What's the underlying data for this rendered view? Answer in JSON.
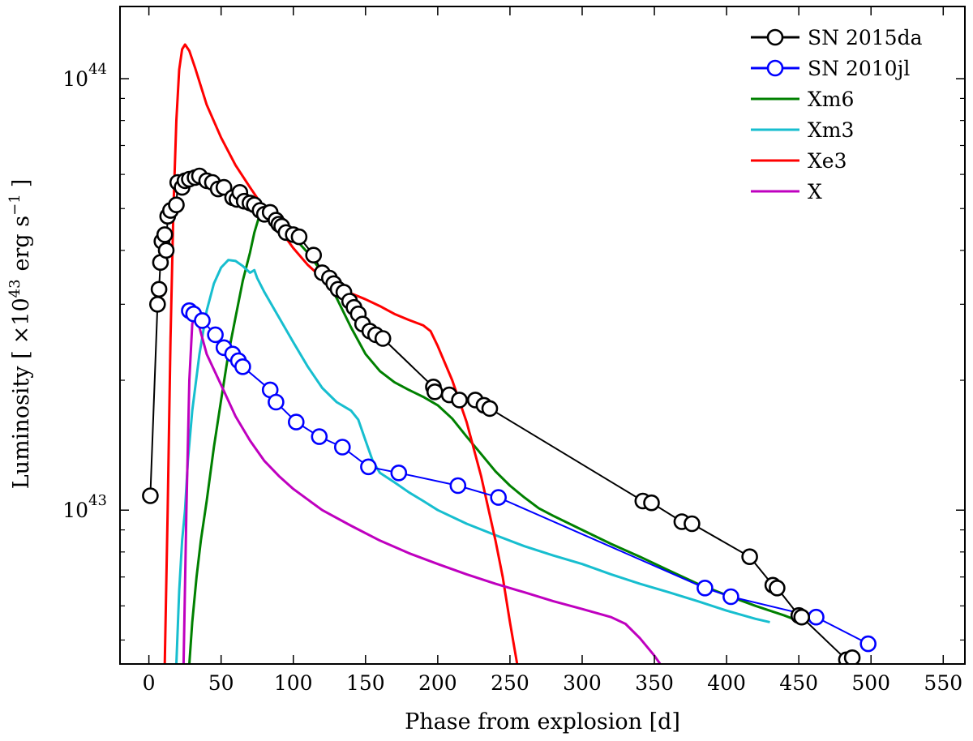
{
  "chart_data": {
    "type": "line",
    "title": "",
    "xlabel": "Phase from explosion [d]",
    "ylabel_prefix": "Luminosity [",
    "ylabel_unit": "×10",
    "ylabel_exp": "43",
    "ylabel_mid": "erg s",
    "ylabel_sexp": "−1",
    "ylabel_suffix": "]",
    "xlim": [
      -20,
      565
    ],
    "ylim": [
      4.4e+42,
      1.47e+44
    ],
    "yscale": "log",
    "x_ticks": [
      0,
      50,
      100,
      150,
      200,
      250,
      300,
      350,
      400,
      450,
      500,
      550
    ],
    "y_major_ticks": [
      {
        "value": 1e+43,
        "base": "10",
        "exp": "43"
      },
      {
        "value": 1e+44,
        "base": "10",
        "exp": "44"
      }
    ],
    "y_minor_ticks": [
      5e+42,
      6e+42,
      7e+42,
      8e+42,
      9e+42,
      2e+43,
      3e+43,
      4e+43,
      5e+43,
      6e+43,
      7e+43,
      8e+43,
      9e+43
    ],
    "legend_position": "top-right",
    "series": [
      {
        "name": "Xm6",
        "color": "#008000",
        "marker": "none",
        "width": 3,
        "points": [
          [
            28,
            4.4e+42
          ],
          [
            30,
            5.5e+42
          ],
          [
            33,
            7e+42
          ],
          [
            36,
            8.5e+42
          ],
          [
            40,
            1.05e+43
          ],
          [
            45,
            1.4e+43
          ],
          [
            50,
            1.8e+43
          ],
          [
            55,
            2.3e+43
          ],
          [
            60,
            2.8e+43
          ],
          [
            65,
            3.4e+43
          ],
          [
            70,
            3.95e+43
          ],
          [
            73,
            4.4e+43
          ],
          [
            76,
            4.75e+43
          ],
          [
            80,
            4.85e+43
          ],
          [
            90,
            4.6e+43
          ],
          [
            100,
            4.3e+43
          ],
          [
            110,
            3.95e+43
          ],
          [
            120,
            3.55e+43
          ],
          [
            130,
            3.1e+43
          ],
          [
            140,
            2.65e+43
          ],
          [
            150,
            2.3e+43
          ],
          [
            160,
            2.1e+43
          ],
          [
            170,
            1.98e+43
          ],
          [
            180,
            1.9e+43
          ],
          [
            190,
            1.83e+43
          ],
          [
            200,
            1.75e+43
          ],
          [
            210,
            1.63e+43
          ],
          [
            220,
            1.48e+43
          ],
          [
            230,
            1.35e+43
          ],
          [
            240,
            1.23e+43
          ],
          [
            250,
            1.14e+43
          ],
          [
            260,
            1.07e+43
          ],
          [
            270,
            1.01e+43
          ],
          [
            280,
            9.7e+42
          ],
          [
            300,
            9e+42
          ],
          [
            320,
            8.35e+42
          ],
          [
            340,
            7.8e+42
          ],
          [
            360,
            7.25e+42
          ],
          [
            380,
            6.75e+42
          ],
          [
            400,
            6.35e+42
          ],
          [
            420,
            6e+42
          ],
          [
            440,
            5.7e+42
          ],
          [
            452,
            5.5e+42
          ]
        ]
      },
      {
        "name": "Xm3",
        "color": "#17becf",
        "marker": "none",
        "width": 3,
        "points": [
          [
            19,
            4.4e+42
          ],
          [
            21,
            6.5e+42
          ],
          [
            23,
            8.5e+42
          ],
          [
            25,
            1e+43
          ],
          [
            27,
            1.3e+43
          ],
          [
            30,
            1.7e+43
          ],
          [
            35,
            2.3e+43
          ],
          [
            40,
            2.9e+43
          ],
          [
            45,
            3.35e+43
          ],
          [
            50,
            3.65e+43
          ],
          [
            55,
            3.8e+43
          ],
          [
            60,
            3.78e+43
          ],
          [
            65,
            3.68e+43
          ],
          [
            70,
            3.55e+43
          ],
          [
            73,
            3.6e+43
          ],
          [
            75,
            3.45e+43
          ],
          [
            80,
            3.2e+43
          ],
          [
            90,
            2.8e+43
          ],
          [
            100,
            2.45e+43
          ],
          [
            110,
            2.15e+43
          ],
          [
            120,
            1.92e+43
          ],
          [
            130,
            1.78e+43
          ],
          [
            140,
            1.7e+43
          ],
          [
            145,
            1.62e+43
          ],
          [
            150,
            1.45e+43
          ],
          [
            155,
            1.3e+43
          ],
          [
            160,
            1.22e+43
          ],
          [
            170,
            1.16e+43
          ],
          [
            180,
            1.1e+43
          ],
          [
            190,
            1.05e+43
          ],
          [
            200,
            1e+43
          ],
          [
            220,
            9.3e+42
          ],
          [
            240,
            8.75e+42
          ],
          [
            260,
            8.25e+42
          ],
          [
            280,
            7.85e+42
          ],
          [
            300,
            7.5e+42
          ],
          [
            320,
            7.1e+42
          ],
          [
            340,
            6.75e+42
          ],
          [
            360,
            6.45e+42
          ],
          [
            380,
            6.15e+42
          ],
          [
            400,
            5.85e+42
          ],
          [
            420,
            5.6e+42
          ],
          [
            430,
            5.5e+42
          ]
        ]
      },
      {
        "name": "Xe3",
        "color": "#ff0000",
        "marker": "none",
        "width": 3,
        "points": [
          [
            11,
            4.4e+42
          ],
          [
            13,
            1e+43
          ],
          [
            15,
            2.5e+43
          ],
          [
            17,
            5e+43
          ],
          [
            19,
            8e+43
          ],
          [
            21,
            1.05e+44
          ],
          [
            23,
            1.17e+44
          ],
          [
            25,
            1.2e+44
          ],
          [
            28,
            1.16e+44
          ],
          [
            32,
            1.06e+44
          ],
          [
            40,
            8.7e+43
          ],
          [
            50,
            7.3e+43
          ],
          [
            60,
            6.3e+43
          ],
          [
            70,
            5.6e+43
          ],
          [
            80,
            5e+43
          ],
          [
            90,
            4.5e+43
          ],
          [
            100,
            4.05e+43
          ],
          [
            110,
            3.7e+43
          ],
          [
            120,
            3.45e+43
          ],
          [
            130,
            3.3e+43
          ],
          [
            140,
            3.18e+43
          ],
          [
            150,
            3.08e+43
          ],
          [
            160,
            2.97e+43
          ],
          [
            170,
            2.85e+43
          ],
          [
            180,
            2.76e+43
          ],
          [
            190,
            2.68e+43
          ],
          [
            195,
            2.6e+43
          ],
          [
            200,
            2.4e+43
          ],
          [
            210,
            2e+43
          ],
          [
            220,
            1.6e+43
          ],
          [
            230,
            1.2e+43
          ],
          [
            240,
            8.5e+42
          ],
          [
            245,
            7e+42
          ],
          [
            250,
            5.5e+42
          ],
          [
            255,
            4.4e+42
          ]
        ]
      },
      {
        "name": "X",
        "color": "#bf00bf",
        "marker": "none",
        "width": 3,
        "points": [
          [
            24,
            4.4e+42
          ],
          [
            26,
            1e+43
          ],
          [
            28,
            2e+43
          ],
          [
            30,
            2.7e+43
          ],
          [
            32,
            2.85e+43
          ],
          [
            35,
            2.65e+43
          ],
          [
            40,
            2.3e+43
          ],
          [
            50,
            1.95e+43
          ],
          [
            60,
            1.65e+43
          ],
          [
            70,
            1.45e+43
          ],
          [
            80,
            1.3e+43
          ],
          [
            90,
            1.2e+43
          ],
          [
            100,
            1.12e+43
          ],
          [
            120,
            1e+43
          ],
          [
            140,
            9.2e+42
          ],
          [
            160,
            8.5e+42
          ],
          [
            180,
            7.95e+42
          ],
          [
            200,
            7.5e+42
          ],
          [
            220,
            7.1e+42
          ],
          [
            240,
            6.75e+42
          ],
          [
            260,
            6.45e+42
          ],
          [
            280,
            6.15e+42
          ],
          [
            300,
            5.9e+42
          ],
          [
            320,
            5.65e+42
          ],
          [
            330,
            5.45e+42
          ],
          [
            340,
            5.05e+42
          ],
          [
            350,
            4.6e+42
          ],
          [
            354,
            4.4e+42
          ]
        ]
      },
      {
        "name": "SN 2010jl",
        "color": "#0000ff",
        "marker": "circle",
        "width": 2,
        "points": [
          [
            28,
            2.9e+43
          ],
          [
            31,
            2.85e+43
          ],
          [
            37,
            2.75e+43
          ],
          [
            46,
            2.55e+43
          ],
          [
            52,
            2.38e+43
          ],
          [
            58,
            2.3e+43
          ],
          [
            62,
            2.22e+43
          ],
          [
            65,
            2.15e+43
          ],
          [
            84,
            1.9e+43
          ],
          [
            88,
            1.78e+43
          ],
          [
            102,
            1.6e+43
          ],
          [
            118,
            1.48e+43
          ],
          [
            134,
            1.4e+43
          ],
          [
            152,
            1.26e+43
          ],
          [
            173,
            1.22e+43
          ],
          [
            214,
            1.14e+43
          ],
          [
            242,
            1.07e+43
          ],
          [
            385,
            6.6e+42
          ],
          [
            403,
            6.3e+42
          ],
          [
            462,
            5.65e+42
          ],
          [
            498,
            4.9e+42
          ]
        ]
      },
      {
        "name": "SN 2015da",
        "color": "#000000",
        "marker": "circle",
        "width": 2,
        "points": [
          [
            1,
            1.08e+43
          ],
          [
            6,
            3e+43
          ],
          [
            7,
            3.25e+43
          ],
          [
            8,
            3.75e+43
          ],
          [
            9,
            4.2e+43
          ],
          [
            11,
            4.35e+43
          ],
          [
            12,
            4e+43
          ],
          [
            13,
            4.8e+43
          ],
          [
            15,
            4.95e+43
          ],
          [
            19,
            5.1e+43
          ],
          [
            20,
            5.75e+43
          ],
          [
            23,
            5.6e+43
          ],
          [
            25,
            5.8e+43
          ],
          [
            28,
            5.85e+43
          ],
          [
            32,
            5.9e+43
          ],
          [
            35,
            5.95e+43
          ],
          [
            40,
            5.8e+43
          ],
          [
            44,
            5.75e+43
          ],
          [
            48,
            5.55e+43
          ],
          [
            52,
            5.6e+43
          ],
          [
            58,
            5.3e+43
          ],
          [
            61,
            5.25e+43
          ],
          [
            63,
            5.45e+43
          ],
          [
            66,
            5.2e+43
          ],
          [
            70,
            5.15e+43
          ],
          [
            73,
            5.1e+43
          ],
          [
            77,
            4.95e+43
          ],
          [
            80,
            4.85e+43
          ],
          [
            84,
            4.9e+43
          ],
          [
            88,
            4.7e+43
          ],
          [
            90,
            4.6e+43
          ],
          [
            92,
            4.55e+43
          ],
          [
            95,
            4.4e+43
          ],
          [
            100,
            4.35e+43
          ],
          [
            104,
            4.3e+43
          ],
          [
            114,
            3.9e+43
          ],
          [
            120,
            3.55e+43
          ],
          [
            125,
            3.45e+43
          ],
          [
            128,
            3.35e+43
          ],
          [
            131,
            3.25e+43
          ],
          [
            135,
            3.2e+43
          ],
          [
            139,
            3.05e+43
          ],
          [
            142,
            2.95e+43
          ],
          [
            145,
            2.85e+43
          ],
          [
            148,
            2.7e+43
          ],
          [
            153,
            2.6e+43
          ],
          [
            157,
            2.55e+43
          ],
          [
            162,
            2.5e+43
          ],
          [
            197,
            1.93e+43
          ],
          [
            198,
            1.88e+43
          ],
          [
            208,
            1.85e+43
          ],
          [
            215,
            1.8e+43
          ],
          [
            226,
            1.8e+43
          ],
          [
            232,
            1.75e+43
          ],
          [
            236,
            1.72e+43
          ],
          [
            342,
            1.05e+43
          ],
          [
            348,
            1.04e+43
          ],
          [
            369,
            9.4e+42
          ],
          [
            376,
            9.3e+42
          ],
          [
            416,
            7.8e+42
          ],
          [
            432,
            6.7e+42
          ],
          [
            435,
            6.6e+42
          ],
          [
            450,
            5.7e+42
          ],
          [
            452,
            5.65e+42
          ],
          [
            483,
            4.5e+42
          ],
          [
            487,
            4.55e+42
          ]
        ]
      }
    ],
    "legend": [
      {
        "name": "SN 2015da",
        "color": "#000000",
        "marker": "circle"
      },
      {
        "name": "SN 2010jl",
        "color": "#0000ff",
        "marker": "circle"
      },
      {
        "name": "Xm6",
        "color": "#008000",
        "marker": "none"
      },
      {
        "name": "Xm3",
        "color": "#17becf",
        "marker": "none"
      },
      {
        "name": "Xe3",
        "color": "#ff0000",
        "marker": "none"
      },
      {
        "name": "X",
        "color": "#bf00bf",
        "marker": "none"
      }
    ]
  }
}
